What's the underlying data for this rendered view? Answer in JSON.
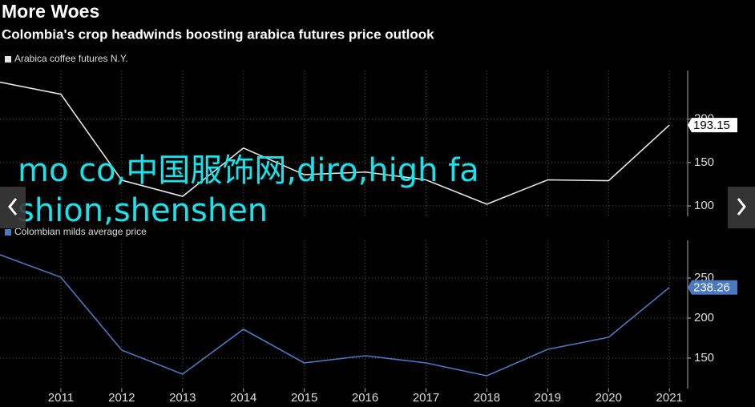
{
  "chart_data": [
    {
      "type": "line",
      "title": "More Woes",
      "subtitle": "Colombia's crop headwinds boosting arabica futures price outlook",
      "x": [
        2010,
        2011,
        2012,
        2013,
        2014,
        2015,
        2016,
        2017,
        2018,
        2019,
        2020,
        2021
      ],
      "series": [
        {
          "name": "Arabica coffee futures N.Y.",
          "color": "#e6e6e6",
          "values": [
            242.6,
            228.7,
            129.6,
            111,
            166.7,
            136,
            139,
            130,
            102,
            130,
            129,
            193.15
          ]
        }
      ],
      "xlim": [
        2010,
        2021.3
      ],
      "ylim": [
        88,
        256
      ],
      "yticks": [
        100,
        150,
        200
      ],
      "grid": true
    },
    {
      "type": "line",
      "x": [
        2010,
        2011,
        2012,
        2013,
        2014,
        2015,
        2016,
        2017,
        2018,
        2019,
        2020,
        2021
      ],
      "series": [
        {
          "name": "Colombian milds average price",
          "color": "#4a78c2",
          "values": [
            279,
            251,
            160,
            130,
            186,
            144,
            153,
            144,
            128,
            161,
            176,
            238.26
          ]
        }
      ],
      "xlim": [
        2010,
        2021.3
      ],
      "ylim": [
        112,
        297
      ],
      "yticks": [
        150,
        200,
        250
      ],
      "xticks": [
        2011,
        2012,
        2013,
        2014,
        2015,
        2016,
        2017,
        2018,
        2019,
        2020,
        2021
      ],
      "grid": true
    }
  ],
  "overlay": "mo co,中国服饰网,diro,high fashion,shenshen"
}
